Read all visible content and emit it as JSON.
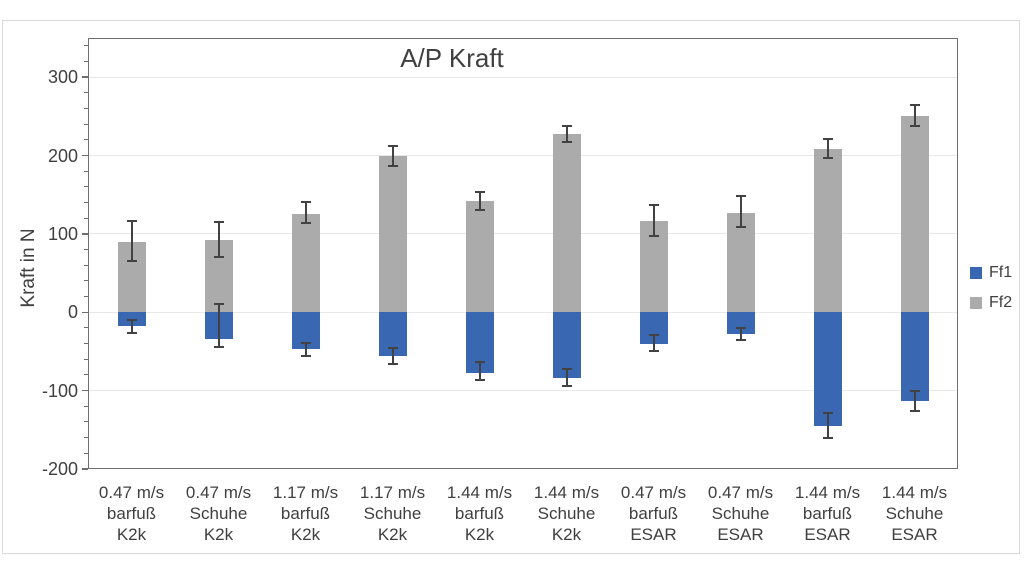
{
  "chart_data": {
    "type": "bar",
    "subtype": "stacked-diverging-with-error-bars",
    "title": "A/P Kraft",
    "xlabel": "",
    "ylabel": "Kraft in N",
    "ylim": [
      -200,
      350
    ],
    "ytick_major_step": 100,
    "ytick_minor_step": 20,
    "ytick_labels": [
      "300",
      "200",
      "100",
      "0",
      "-100",
      "-200"
    ],
    "grid": "horizontal-major",
    "legend_position": "right",
    "categories": [
      "0.47 m/s\nbarfuß\nK2k",
      "0.47 m/s\nSchuhe\nK2k",
      "1.17 m/s\nbarfuß\nK2k",
      "1.17 m/s\nSchuhe\nK2k",
      "1.44 m/s\nbarfuß\nK2k",
      "1.44 m/s\nSchuhe\nK2k",
      "0.47 m/s\nbarfuß\nESAR",
      "0.47 m/s\nSchuhe\nESAR",
      "1.44 m/s\nbarfuß\nESAR",
      "1.44 m/s\nSchuhe\nESAR"
    ],
    "series": [
      {
        "name": "Ff1",
        "color": "#3a67b1",
        "values": [
          -18,
          -34,
          -47,
          -56,
          -77,
          -84,
          -40,
          -28,
          -145,
          -113
        ],
        "error_whisker_low": [
          -26,
          -44,
          -56,
          -66,
          -87,
          -94,
          -50,
          -35,
          -161,
          -126
        ],
        "error_whisker_high": [
          -10,
          10,
          -39,
          -45,
          -63,
          -72,
          -29,
          -20,
          -129,
          -100
        ]
      },
      {
        "name": "Ff2",
        "color": "#ababab",
        "values": [
          90,
          92,
          126,
          200,
          142,
          227,
          117,
          127,
          208,
          250
        ],
        "error_whisker_low": [
          66,
          70,
          114,
          187,
          131,
          217,
          97,
          109,
          197,
          238
        ],
        "error_whisker_high": [
          117,
          115,
          141,
          212,
          153,
          238,
          137,
          148,
          221,
          264
        ]
      }
    ]
  }
}
